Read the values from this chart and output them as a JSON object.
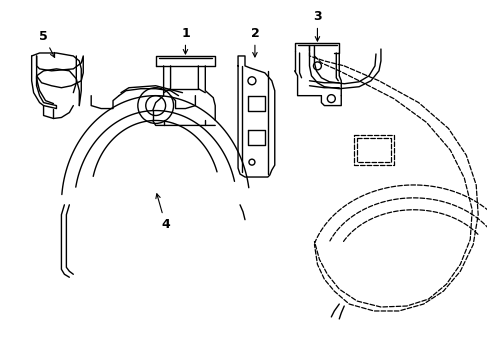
{
  "background_color": "#ffffff",
  "line_color": "#000000",
  "lw_solid": 1.0,
  "lw_dashed": 0.9,
  "figsize": [
    4.89,
    3.6
  ],
  "dpi": 100
}
